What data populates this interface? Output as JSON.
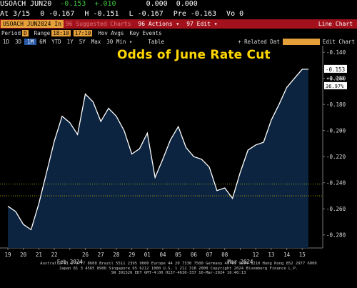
{
  "quote": {
    "ticker": "USOACH JUN20",
    "last": "-0.153",
    "change": "+.010",
    "bid": "0.000",
    "ask": "0.000",
    "at": "At 3/15",
    "open": "0 -0.167",
    "high": "H -0.151",
    "low": "L -0.167",
    "pre": "Pre -0.163",
    "vol": "Vo 0"
  },
  "toolbar": {
    "ticker": "USOACH JUN2024 In",
    "suggested": "96 Suggested Charts",
    "actions": "96 Actions ▾",
    "edit": "97 Edit ▾",
    "line_chart": "Line Chart"
  },
  "params": {
    "period_label": "Period",
    "period_value": "D",
    "range_label": "Range",
    "range_start": "18:10",
    "range_end": "17:10",
    "hov_avgs": "Hov Avgs",
    "key_events": "Key Events"
  },
  "periods": [
    "1D",
    "3D",
    "1M",
    "6M",
    "YTD",
    "1Y",
    "5Y",
    "Max",
    "30 Min ▾"
  ],
  "period_selected": "1M",
  "table_label": "Table",
  "related": "+ Related Dat",
  "edit_chart": "Edit Chart",
  "colors": {
    "background": "#000000",
    "area_fill": "#0c2440",
    "line": "#ffffff",
    "title": "#ffd700",
    "toolbar": "#a3121c",
    "highlight": "#e6a03a"
  },
  "chart_data": {
    "type": "area",
    "title": "Odds of June Rate Cut",
    "x_ticks": [
      "19",
      "20",
      "21",
      "22",
      "Feb 2024",
      "26",
      "27",
      "28",
      "29",
      "01",
      "04",
      "05",
      "06",
      "07",
      "08",
      "Mar 2024",
      "12",
      "13",
      "14",
      "15"
    ],
    "y_ticks": [
      "-0.140",
      "-0.160",
      "-0.180",
      "-0.200",
      "-0.220",
      "-0.240",
      "-0.260",
      "-0.280"
    ],
    "ylim": [
      -0.29,
      -0.135
    ],
    "reference_lines": [
      -0.241,
      -0.25
    ],
    "last_value": "-0.153",
    "side_labels": [
      "+0.090",
      "36.97%"
    ],
    "series": [
      {
        "x": [
          0,
          0.5,
          1.0,
          1.5,
          2.0,
          2.5,
          3.0,
          3.5,
          4.0,
          4.5,
          5.0,
          5.5,
          6.0,
          6.5,
          7.0,
          7.5,
          8.0,
          8.5,
          9.0,
          9.5,
          10.0,
          10.5,
          11.0,
          11.5,
          12.0,
          12.5,
          13.0,
          13.5,
          14.0,
          14.5,
          15.0,
          15.5,
          16.0,
          16.5,
          17.0,
          17.5,
          18.0,
          18.5,
          19.0,
          19.4
        ],
        "values": [
          -0.258,
          -0.262,
          -0.272,
          -0.276,
          -0.256,
          -0.232,
          -0.208,
          -0.189,
          -0.194,
          -0.203,
          -0.172,
          -0.178,
          -0.193,
          -0.183,
          -0.189,
          -0.2,
          -0.218,
          -0.214,
          -0.202,
          -0.236,
          -0.222,
          -0.207,
          -0.197,
          -0.213,
          -0.22,
          -0.222,
          -0.228,
          -0.246,
          -0.244,
          -0.252,
          -0.232,
          -0.215,
          -0.211,
          -0.209,
          -0.192,
          -0.18,
          -0.167,
          -0.16,
          -0.153,
          -0.153
        ]
      }
    ]
  },
  "footer": {
    "line1": "Australia 61 2 9777 8600 Brazil 5511 2395 9000 Europe 44 20 7330 7500 Germany 49 69 9204 1210 Hong Kong 852 2977 6000",
    "line2": "Japan 81 3 4565 8900   Singapore 65 6212 1000   U.S. 1 212 318 2000   Copyright 2024 Bloomberg Finance L.P.",
    "line3": "SN 391526 EDT GMT-4:00 H137-4630-337 16-Mar-2024 16:40:13"
  }
}
